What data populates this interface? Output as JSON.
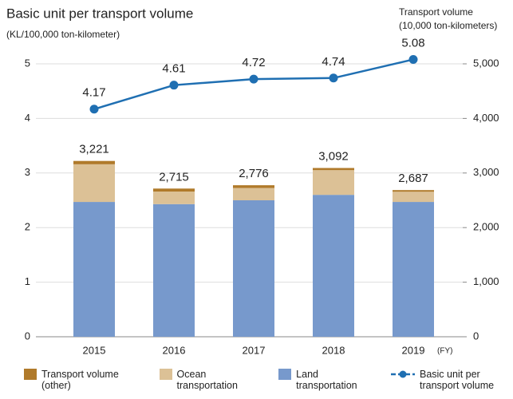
{
  "chart_data": {
    "type": "bar-line",
    "title": "Basic unit per transport volume",
    "y_label": "(KL/100,000 ton-kilometer)",
    "y2_label": [
      "Transport volume",
      "(10,000 ton-kilometers)"
    ],
    "x_unit": "(FY)",
    "categories": [
      "2015",
      "2016",
      "2017",
      "2018",
      "2019"
    ],
    "series": [
      {
        "name": "Land transportation",
        "color": "#7799cc",
        "axis": "y2",
        "kind": "bar",
        "values": [
          2470,
          2430,
          2500,
          2600,
          2470
        ]
      },
      {
        "name": "Ocean transportation",
        "color": "#dcc196",
        "axis": "y2",
        "kind": "bar",
        "values": [
          690,
          230,
          226,
          452,
          187
        ]
      },
      {
        "name": "Transport volume (other)",
        "color": "#b07a2a",
        "axis": "y2",
        "kind": "bar",
        "values": [
          61,
          55,
          50,
          40,
          30
        ]
      },
      {
        "name": "Basic unit per transport volume",
        "color": "#1f6fb2",
        "axis": "y",
        "kind": "line",
        "values": [
          4.17,
          4.61,
          4.72,
          4.74,
          5.08
        ]
      }
    ],
    "totals": [
      3221,
      2715,
      2776,
      3092,
      2687
    ],
    "total_labels": [
      "3,221",
      "2,715",
      "2,776",
      "3,092",
      "2,687"
    ],
    "ylim": [
      0,
      5
    ],
    "yticks": [
      0,
      1,
      2,
      3,
      4,
      5
    ],
    "y2lim": [
      0,
      5000
    ],
    "y2ticks": [
      0,
      {
        "value": 1000,
        "label": "1,000"
      },
      {
        "value": 2000,
        "label": "2,000"
      },
      {
        "value": 3000,
        "label": "3,000"
      },
      {
        "value": 4000,
        "label": "4,000"
      },
      {
        "value": 5000,
        "label": "5,000"
      }
    ],
    "grid": true
  }
}
